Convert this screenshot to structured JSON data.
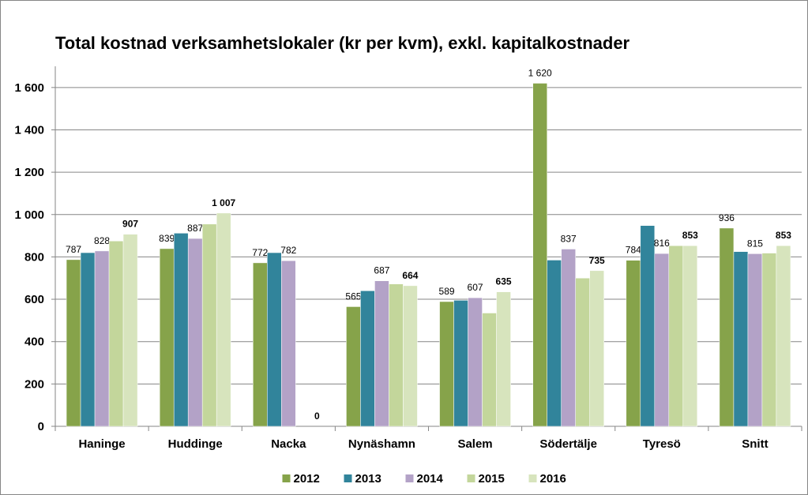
{
  "chart_data": {
    "type": "bar",
    "title": "Total kostnad verksamhetslokaler (kr per kvm), exkl. kapitalkostnader",
    "categories": [
      "Haninge",
      "Huddinge",
      "Nacka",
      "Nynäshamn",
      "Salem",
      "Södertälje",
      "Tyresö",
      "Snitt"
    ],
    "series": [
      {
        "name": "2012",
        "color": "#86a34a",
        "values": [
          787,
          839,
          772,
          565,
          589,
          1620,
          784,
          936
        ],
        "value_labels": [
          "787",
          "839",
          "772",
          "565",
          "589",
          "1 620",
          "784",
          "936"
        ]
      },
      {
        "name": "2013",
        "color": "#31849b",
        "values": [
          820,
          912,
          820,
          640,
          595,
          785,
          948,
          825
        ]
      },
      {
        "name": "2014",
        "color": "#b3a2c7",
        "values": [
          828,
          887,
          782,
          687,
          607,
          837,
          816,
          815
        ],
        "value_labels": [
          "828",
          "887",
          "782",
          "687",
          "607",
          "837",
          "816",
          "815"
        ]
      },
      {
        "name": "2015",
        "color": "#c3d69b",
        "values": [
          875,
          955,
          null,
          672,
          535,
          700,
          853,
          818
        ]
      },
      {
        "name": "2016",
        "color": "#d7e4bd",
        "values": [
          907,
          1007,
          0,
          664,
          635,
          735,
          853,
          853
        ],
        "value_labels": [
          "907",
          "1 007",
          "0",
          "664",
          "635",
          "735",
          "853",
          "853"
        ]
      }
    ],
    "ylim": [
      0,
      1700
    ],
    "yticks": [
      0,
      200,
      400,
      600,
      800,
      {
        "value": 1000,
        "label": "1 000"
      },
      {
        "value": 1200,
        "label": "1 200"
      },
      {
        "value": 1400,
        "label": "1 400"
      },
      {
        "value": 1600,
        "label": "1 600"
      }
    ],
    "grid": true,
    "legend": "bottom"
  }
}
